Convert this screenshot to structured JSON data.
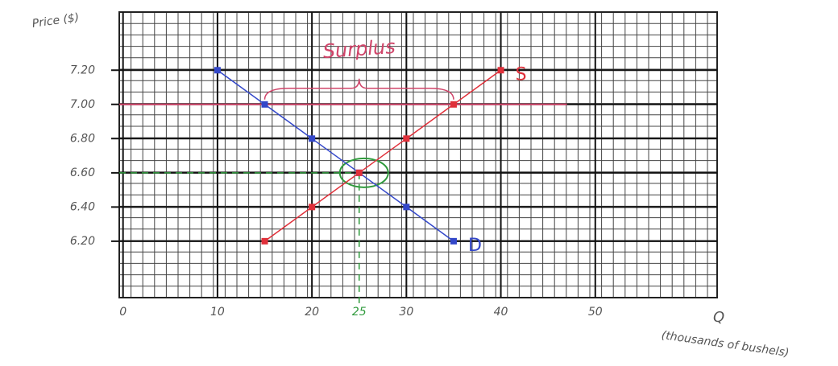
{
  "chart_data": {
    "type": "line",
    "y_label": "Price ($)",
    "x_label": "Q",
    "x_sublabel": "(thousands of bushels)",
    "annotation": "Surplus",
    "x": [
      10,
      15,
      20,
      25,
      30,
      35,
      40
    ],
    "series": [
      {
        "name": "D",
        "color": "#3347c9",
        "values": [
          7.2,
          7.0,
          6.8,
          6.6,
          6.4,
          6.2,
          null
        ]
      },
      {
        "name": "S",
        "color": "#e0303a",
        "values": [
          null,
          6.2,
          6.4,
          6.6,
          6.8,
          7.0,
          7.2
        ]
      }
    ],
    "price_floor": {
      "value": 7.0,
      "color": "#d0456a"
    },
    "equilibrium": {
      "x": 25,
      "y": 6.6,
      "color": "#2f9a3c"
    },
    "xlim": [
      -0.4,
      62.9
    ],
    "ylim": [
      5.87,
      7.54
    ],
    "xticks": [
      0,
      10,
      20,
      30,
      40,
      50
    ],
    "yticks": [
      {
        "value": 6.2,
        "label": "6.20"
      },
      {
        "value": 6.4,
        "label": "6.40"
      },
      {
        "value": 6.6,
        "label": "6.60"
      },
      {
        "value": 6.8,
        "label": "6.80"
      },
      {
        "value": 7.0,
        "label": "7.00"
      },
      {
        "value": 7.2,
        "label": "7.20"
      }
    ],
    "grid": true
  }
}
